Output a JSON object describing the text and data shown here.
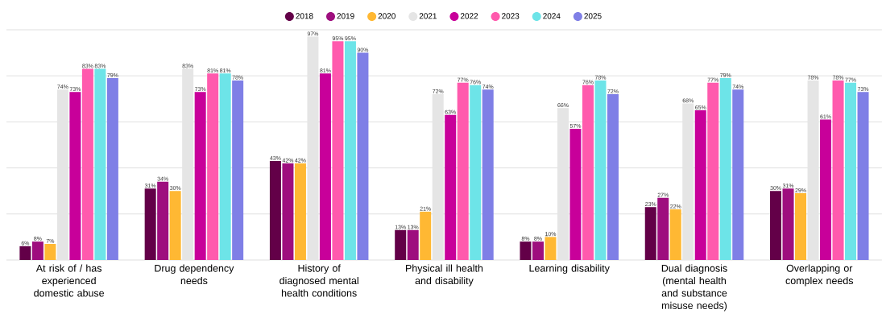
{
  "chart_data": {
    "type": "bar",
    "categories": [
      "At risk of / has experienced domestic abuse",
      "Drug dependency needs",
      "History of diagnosed mental health conditions",
      "Physical ill health and disability",
      "Learning disability",
      "Dual diagnosis (mental health and substance misuse needs)",
      "Overlapping or complex needs"
    ],
    "series": [
      {
        "name": "2018",
        "color": "#630048",
        "values": [
          6,
          31,
          43,
          13,
          8,
          23,
          30
        ],
        "value_labels": [
          "6%",
          "31%",
          "43%",
          "13%",
          "8%",
          "23%",
          "30%"
        ]
      },
      {
        "name": "2019",
        "color": "#9e0e7e",
        "values": [
          8,
          34,
          42,
          13,
          8,
          27,
          31
        ],
        "value_labels": [
          "8%",
          "34%",
          "42%",
          "13%",
          "8%",
          "27%",
          "31%"
        ]
      },
      {
        "name": "2020",
        "color": "#ffb833",
        "values": [
          7,
          30,
          42,
          21,
          10,
          22,
          29
        ],
        "value_labels": [
          "7%",
          "30%",
          "42%",
          "21%",
          "10%",
          "22%",
          "29%"
        ]
      },
      {
        "name": "2021",
        "color": "#e5e5e5",
        "values": [
          74,
          83,
          97,
          72,
          66,
          68,
          78
        ],
        "value_labels": [
          "74%",
          "83%",
          "97%",
          "72%",
          "66%",
          "68%",
          "78%"
        ]
      },
      {
        "name": "2022",
        "color": "#c8009a",
        "values": [
          73,
          73,
          81,
          63,
          57,
          65,
          61
        ],
        "value_labels": [
          "73%",
          "73%",
          "81%",
          "63%",
          "57%",
          "65%",
          "61%"
        ]
      },
      {
        "name": "2023",
        "color": "#ff5aad",
        "values": [
          83,
          81,
          95,
          77,
          76,
          77,
          78
        ],
        "value_labels": [
          "83%",
          "81%",
          "95%",
          "77%",
          "76%",
          "77%",
          "78%"
        ]
      },
      {
        "name": "2024",
        "color": "#6de4e8",
        "values": [
          83,
          81,
          95,
          76,
          78,
          79,
          77
        ],
        "value_labels": [
          "83%",
          "81%",
          "95%",
          "76%",
          "78%",
          "79%",
          "77%"
        ]
      },
      {
        "name": "2025",
        "color": "#7f7fe6",
        "values": [
          79,
          78,
          90,
          74,
          72,
          74,
          73
        ],
        "value_labels": [
          "79%",
          "78%",
          "90%",
          "74%",
          "72%",
          "74%",
          "73%"
        ]
      }
    ],
    "ylim": [
      0,
      100
    ],
    "yticks": [
      {
        "value": 0,
        "label": null
      },
      {
        "value": 20,
        "label": null
      },
      {
        "value": 40,
        "label": null
      },
      {
        "value": 60,
        "label": null
      },
      {
        "value": 80,
        "label": null
      },
      {
        "value": 100,
        "label": null
      }
    ],
    "grid": "y",
    "legend": "top",
    "tick_labels": "x"
  }
}
